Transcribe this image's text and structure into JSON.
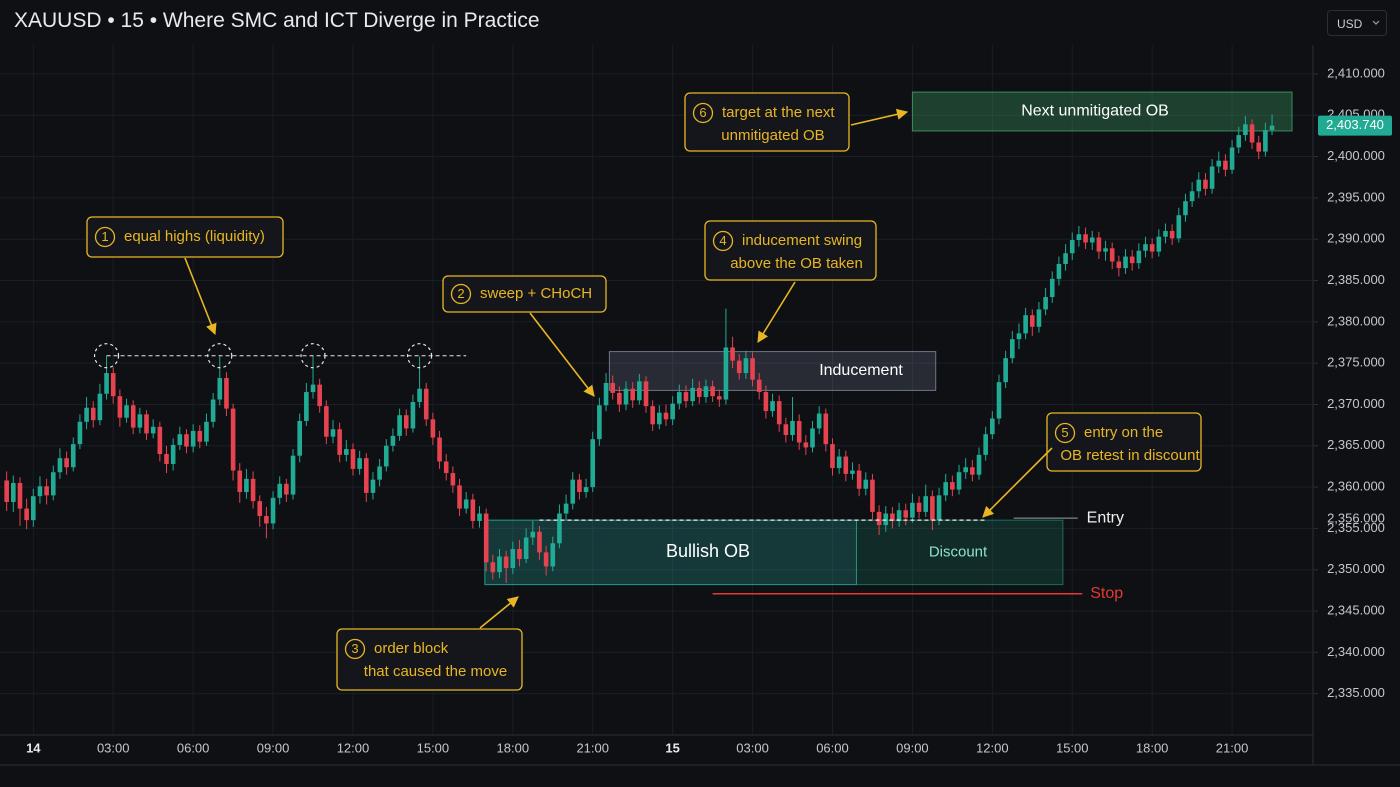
{
  "header": {
    "title": "XAUUSD • 15 • Where SMC and ICT Diverge in Practice",
    "currency": "USD"
  },
  "chart_data": {
    "type": "candlestick",
    "colors": {
      "up": "#22ab94",
      "down": "#e5434f"
    },
    "grid": true,
    "xlim": [
      -1,
      196
    ],
    "xticks": [
      {
        "value": 4,
        "label": "14"
      },
      {
        "value": 16,
        "label": "03:00"
      },
      {
        "value": 28,
        "label": "06:00"
      },
      {
        "value": 40,
        "label": "09:00"
      },
      {
        "value": 52,
        "label": "12:00"
      },
      {
        "value": 64,
        "label": "15:00"
      },
      {
        "value": 76,
        "label": "18:00"
      },
      {
        "value": 88,
        "label": "21:00"
      },
      {
        "value": 100,
        "label": "15"
      },
      {
        "value": 112,
        "label": "03:00"
      },
      {
        "value": 124,
        "label": "06:00"
      },
      {
        "value": 136,
        "label": "09:00"
      },
      {
        "value": 148,
        "label": "12:00"
      },
      {
        "value": 160,
        "label": "15:00"
      },
      {
        "value": 172,
        "label": "18:00"
      },
      {
        "value": 184,
        "label": "21:00"
      }
    ],
    "ylim": [
      2330,
      2413.5
    ],
    "yticks": [
      {
        "value": 2335,
        "label": "2,335.000"
      },
      {
        "value": 2340,
        "label": "2,340.000"
      },
      {
        "value": 2345,
        "label": "2,345.000"
      },
      {
        "value": 2350,
        "label": "2,350.000"
      },
      {
        "value": 2355,
        "label": "2,355.000"
      },
      {
        "value": 2360,
        "label": "2,360.000"
      },
      {
        "value": 2365,
        "label": "2,365.000"
      },
      {
        "value": 2370,
        "label": "2,370.000"
      },
      {
        "value": 2375,
        "label": "2,375.000"
      },
      {
        "value": 2380,
        "label": "2,380.000"
      },
      {
        "value": 2385,
        "label": "2,385.000"
      },
      {
        "value": 2390,
        "label": "2,390.000"
      },
      {
        "value": 2395,
        "label": "2,395.000"
      },
      {
        "value": 2400,
        "label": "2,400.000"
      },
      {
        "value": 2405,
        "label": "2,405.000"
      },
      {
        "value": 2410,
        "label": "2,410.000"
      }
    ],
    "open": [
      2360.8,
      2358.2,
      2360.5,
      2357.4,
      2356.0,
      2358.9,
      2360.1,
      2359.0,
      2361.8,
      2363.5,
      2362.4,
      2365.2,
      2367.9,
      2369.6,
      2368.1,
      2371.3,
      2373.8,
      2371.0,
      2368.4,
      2369.9,
      2367.2,
      2368.8,
      2366.5,
      2367.3,
      2364.0,
      2362.8,
      2365.1,
      2366.4,
      2364.9,
      2366.8,
      2365.5,
      2367.9,
      2370.6,
      2373.2,
      2369.5,
      2362.0,
      2359.4,
      2361.0,
      2358.3,
      2356.5,
      2355.6,
      2358.7,
      2360.4,
      2359.1,
      2363.8,
      2368.0,
      2371.5,
      2372.4,
      2369.8,
      2366.1,
      2367.0,
      2363.9,
      2364.6,
      2362.2,
      2363.5,
      2359.3,
      2360.9,
      2362.5,
      2365.0,
      2366.2,
      2368.7,
      2367.1,
      2370.3,
      2371.9,
      2368.2,
      2366.0,
      2363.1,
      2361.7,
      2360.2,
      2357.4,
      2358.5,
      2355.9,
      2356.8,
      2350.9,
      2349.7,
      2351.6,
      2350.2,
      2352.5,
      2351.3,
      2353.9,
      2354.6,
      2352.1,
      2350.4,
      2353.2,
      2356.8,
      2358.0,
      2360.9,
      2359.4,
      2360.0,
      2365.8,
      2369.9,
      2372.6,
      2371.4,
      2370.0,
      2371.9,
      2370.5,
      2372.8,
      2369.8,
      2367.6,
      2369.0,
      2368.2,
      2370.1,
      2371.5,
      2370.4,
      2372.0,
      2370.9,
      2372.2,
      2371.0,
      2370.6,
      2376.9,
      2375.3,
      2373.8,
      2375.6,
      2373.0,
      2371.5,
      2369.2,
      2370.4,
      2367.6,
      2366.3,
      2368.0,
      2365.4,
      2364.8,
      2367.1,
      2368.9,
      2365.2,
      2362.3,
      2363.7,
      2361.6,
      2362.0,
      2359.8,
      2360.9,
      2357.0,
      2355.4,
      2356.8,
      2355.9,
      2357.2,
      2356.3,
      2358.1,
      2357.0,
      2358.9,
      2356.0,
      2359.0,
      2360.6,
      2359.7,
      2361.8,
      2362.4,
      2361.5,
      2363.9,
      2366.4,
      2368.3,
      2372.7,
      2375.6,
      2377.9,
      2378.6,
      2380.8,
      2379.4,
      2381.5,
      2383.0,
      2385.2,
      2387.0,
      2388.3,
      2389.9,
      2390.6,
      2389.6,
      2390.2,
      2388.5,
      2388.9,
      2387.3,
      2386.5,
      2387.9,
      2387.1,
      2388.6,
      2389.4,
      2388.5,
      2390.3,
      2391.0,
      2390.1,
      2392.9,
      2394.6,
      2395.8,
      2397.2,
      2396.1,
      2398.8,
      2399.5,
      2398.4,
      2401.1,
      2402.6,
      2403.9,
      2401.7,
      2400.6,
      2403.2
    ],
    "high": [
      2361.9,
      2361.4,
      2361.2,
      2358.6,
      2359.8,
      2361.3,
      2361.0,
      2362.6,
      2364.7,
      2364.3,
      2366.0,
      2368.8,
      2370.9,
      2370.4,
      2372.5,
      2375.9,
      2374.5,
      2371.8,
      2370.7,
      2370.5,
      2369.6,
      2369.3,
      2368.2,
      2367.9,
      2365.0,
      2365.9,
      2367.3,
      2367.0,
      2367.6,
      2367.5,
      2368.9,
      2371.4,
      2375.8,
      2373.9,
      2370.1,
      2362.9,
      2362.2,
      2361.9,
      2359.0,
      2357.6,
      2359.5,
      2361.3,
      2361.0,
      2364.6,
      2368.9,
      2372.6,
      2375.9,
      2373.1,
      2370.5,
      2368.1,
      2367.8,
      2365.7,
      2365.3,
      2364.4,
      2364.1,
      2361.8,
      2363.4,
      2365.8,
      2367.1,
      2369.5,
      2369.4,
      2371.2,
      2375.8,
      2372.6,
      2369.0,
      2366.8,
      2364.0,
      2362.5,
      2361.0,
      2359.4,
      2359.2,
      2357.7,
      2357.4,
      2351.8,
      2352.5,
      2352.3,
      2353.4,
      2353.6,
      2355.0,
      2355.9,
      2355.3,
      2352.9,
      2354.0,
      2357.9,
      2359.1,
      2361.8,
      2361.6,
      2361.0,
      2366.7,
      2370.8,
      2373.8,
      2373.5,
      2372.2,
      2372.8,
      2372.7,
      2373.7,
      2373.4,
      2370.5,
      2369.9,
      2370.0,
      2371.0,
      2372.4,
      2372.3,
      2373.1,
      2372.8,
      2373.0,
      2372.9,
      2371.8,
      2381.6,
      2378.2,
      2376.1,
      2376.5,
      2376.3,
      2373.8,
      2372.3,
      2371.3,
      2371.1,
      2368.4,
      2370.9,
      2368.8,
      2366.3,
      2368.0,
      2369.8,
      2369.5,
      2365.9,
      2364.6,
      2364.4,
      2363.0,
      2362.8,
      2361.8,
      2361.6,
      2357.8,
      2357.7,
      2357.6,
      2358.1,
      2358.0,
      2359.2,
      2358.9,
      2360.3,
      2359.6,
      2359.9,
      2361.6,
      2361.4,
      2362.7,
      2363.5,
      2363.3,
      2364.8,
      2367.3,
      2369.2,
      2373.6,
      2376.5,
      2378.9,
      2379.8,
      2381.7,
      2381.5,
      2382.4,
      2384.1,
      2386.1,
      2387.9,
      2389.4,
      2390.8,
      2391.6,
      2391.4,
      2391.0,
      2390.9,
      2389.8,
      2389.6,
      2388.0,
      2388.8,
      2388.7,
      2389.5,
      2390.3,
      2390.1,
      2391.2,
      2391.9,
      2391.8,
      2393.8,
      2395.5,
      2396.9,
      2398.1,
      2398.0,
      2399.7,
      2400.6,
      2400.3,
      2402.0,
      2403.6,
      2404.9,
      2404.5,
      2402.5,
      2404.1,
      2405.1
    ],
    "low": [
      2357.1,
      2357.0,
      2355.3,
      2354.9,
      2355.2,
      2358.0,
      2357.9,
      2358.4,
      2361.0,
      2361.5,
      2361.9,
      2364.6,
      2367.0,
      2367.2,
      2367.5,
      2370.6,
      2370.1,
      2367.3,
      2367.8,
      2366.4,
      2366.5,
      2365.7,
      2365.9,
      2363.1,
      2361.7,
      2362.0,
      2364.5,
      2364.1,
      2364.2,
      2364.7,
      2365.0,
      2367.2,
      2369.9,
      2368.6,
      2360.8,
      2358.1,
      2358.6,
      2357.4,
      2355.2,
      2353.8,
      2354.9,
      2357.9,
      2358.2,
      2358.5,
      2363.0,
      2367.4,
      2370.7,
      2369.0,
      2365.2,
      2365.3,
      2363.0,
      2363.1,
      2361.4,
      2361.5,
      2358.2,
      2358.5,
      2360.1,
      2361.9,
      2364.3,
      2365.6,
      2366.2,
      2366.6,
      2369.6,
      2367.4,
      2365.1,
      2362.2,
      2360.8,
      2359.3,
      2356.5,
      2356.8,
      2355.0,
      2355.1,
      2349.8,
      2348.8,
      2349.0,
      2348.4,
      2349.5,
      2350.4,
      2350.8,
      2353.0,
      2351.2,
      2349.3,
      2349.8,
      2352.6,
      2356.0,
      2357.3,
      2358.5,
      2358.7,
      2359.4,
      2365.0,
      2369.2,
      2370.6,
      2369.1,
      2369.3,
      2369.6,
      2370.0,
      2369.0,
      2366.8,
      2367.0,
      2367.4,
      2367.5,
      2369.4,
      2369.6,
      2369.8,
      2370.1,
      2370.2,
      2370.3,
      2369.7,
      2370.0,
      2374.4,
      2373.0,
      2373.1,
      2372.2,
      2370.6,
      2368.3,
      2368.5,
      2366.7,
      2365.4,
      2365.6,
      2364.5,
      2363.9,
      2364.2,
      2366.4,
      2364.3,
      2361.4,
      2361.6,
      2360.7,
      2360.9,
      2358.9,
      2359.0,
      2356.1,
      2354.2,
      2354.6,
      2355.0,
      2355.2,
      2355.4,
      2355.7,
      2356.2,
      2356.4,
      2354.8,
      2355.4,
      2358.3,
      2358.9,
      2359.1,
      2361.0,
      2360.7,
      2360.9,
      2363.2,
      2365.8,
      2367.6,
      2372.0,
      2375.0,
      2376.7,
      2377.9,
      2378.3,
      2378.7,
      2380.8,
      2382.3,
      2384.4,
      2386.2,
      2387.5,
      2389.1,
      2388.8,
      2388.7,
      2387.6,
      2387.4,
      2386.4,
      2385.5,
      2385.8,
      2386.2,
      2386.4,
      2387.8,
      2387.7,
      2387.9,
      2389.5,
      2389.3,
      2389.6,
      2392.1,
      2393.9,
      2395.0,
      2395.3,
      2395.5,
      2398.0,
      2397.6,
      2397.9,
      2400.4,
      2401.9,
      2400.9,
      2399.7,
      2400.0,
      2402.6
    ],
    "close": [
      2358.2,
      2360.5,
      2357.4,
      2356.0,
      2358.9,
      2360.1,
      2359.0,
      2361.8,
      2363.5,
      2362.4,
      2365.2,
      2367.9,
      2369.6,
      2368.1,
      2371.3,
      2373.8,
      2371.0,
      2368.4,
      2369.9,
      2367.2,
      2368.8,
      2366.5,
      2367.3,
      2364.0,
      2362.8,
      2365.1,
      2366.4,
      2364.9,
      2366.8,
      2365.5,
      2367.9,
      2370.6,
      2373.2,
      2369.5,
      2362.0,
      2359.4,
      2361.0,
      2358.3,
      2356.5,
      2355.6,
      2358.7,
      2360.4,
      2359.1,
      2363.8,
      2368.0,
      2371.5,
      2372.4,
      2369.8,
      2366.1,
      2367.0,
      2363.9,
      2364.6,
      2362.2,
      2363.5,
      2359.3,
      2360.9,
      2362.5,
      2365.0,
      2366.2,
      2368.7,
      2367.1,
      2370.3,
      2371.9,
      2368.2,
      2366.0,
      2363.1,
      2361.7,
      2360.2,
      2357.4,
      2358.5,
      2355.9,
      2356.8,
      2350.9,
      2349.7,
      2351.6,
      2350.2,
      2352.5,
      2351.3,
      2353.9,
      2354.6,
      2352.1,
      2350.4,
      2353.2,
      2356.8,
      2358.0,
      2360.9,
      2359.4,
      2360.0,
      2365.8,
      2369.9,
      2372.6,
      2371.4,
      2370.0,
      2371.9,
      2370.5,
      2372.8,
      2369.8,
      2367.6,
      2369.0,
      2368.2,
      2370.1,
      2371.5,
      2370.4,
      2372.0,
      2370.9,
      2372.2,
      2371.0,
      2370.6,
      2376.9,
      2375.3,
      2373.8,
      2375.6,
      2373.0,
      2371.5,
      2369.2,
      2370.4,
      2367.6,
      2366.3,
      2368.0,
      2365.4,
      2364.8,
      2367.1,
      2368.9,
      2365.2,
      2362.3,
      2363.7,
      2361.6,
      2362.0,
      2359.8,
      2360.9,
      2357.0,
      2355.4,
      2356.8,
      2355.9,
      2357.2,
      2356.3,
      2358.1,
      2357.0,
      2358.9,
      2356.0,
      2359.0,
      2360.6,
      2359.7,
      2361.8,
      2362.4,
      2361.5,
      2363.9,
      2366.4,
      2368.3,
      2372.7,
      2375.6,
      2377.9,
      2378.6,
      2380.8,
      2379.4,
      2381.5,
      2383.0,
      2385.2,
      2387.0,
      2388.3,
      2389.9,
      2390.6,
      2389.6,
      2390.2,
      2388.5,
      2388.9,
      2387.3,
      2386.5,
      2387.9,
      2387.1,
      2388.6,
      2389.4,
      2388.5,
      2390.3,
      2391.0,
      2390.1,
      2392.9,
      2394.6,
      2395.8,
      2397.2,
      2396.1,
      2398.8,
      2399.5,
      2398.4,
      2401.1,
      2402.6,
      2403.9,
      2401.7,
      2400.6,
      2403.2,
      2403.74
    ],
    "last_price": {
      "value": 2403.74,
      "label": "2,403.740"
    },
    "zones": [
      {
        "label": "Inducement",
        "top": 2376.4,
        "bottom": 2371.7,
        "x_range": [
          90.5,
          139.5
        ],
        "color": "#8f9bb3"
      },
      {
        "label": "Bullish OB",
        "top": 2356,
        "bottom": 2348.2,
        "x_range": [
          71.8,
          127.6
        ],
        "color": "#26a69a"
      },
      {
        "label": "Discount",
        "top": 2356,
        "bottom": 2348.2,
        "x_range": [
          127.6,
          158.6
        ],
        "color": "#1f8f74"
      },
      {
        "label": "Next unmitigated OB",
        "top": 2407.8,
        "bottom": 2403.1,
        "x_range": [
          136,
          193
        ],
        "color": "#3d9a62"
      }
    ],
    "equal_highs": {
      "value": 2375.9,
      "x_range": [
        15,
        69
      ],
      "touches": [
        15,
        32,
        46,
        62
      ]
    },
    "entry": {
      "label": "Entry",
      "value": 2356,
      "value_label": "2,356.000",
      "x_range": [
        80,
        147
      ]
    },
    "stop": {
      "label": "Stop",
      "value": 2347.1,
      "x_range": [
        106,
        161.5
      ],
      "color": "#e53935"
    },
    "annotations": [
      {
        "number": 1,
        "lines": [
          "equal highs (liquidity)"
        ]
      },
      {
        "number": 2,
        "lines": [
          "sweep + CHoCH"
        ]
      },
      {
        "number": 3,
        "lines": [
          "order block",
          "that caused the move"
        ]
      },
      {
        "number": 4,
        "lines": [
          "inducement swing",
          "above the OB taken"
        ]
      },
      {
        "number": 5,
        "lines": [
          "entry on the",
          "OB retest in discount"
        ]
      },
      {
        "number": 6,
        "lines": [
          "target at the next",
          "unmitigated OB"
        ]
      }
    ]
  }
}
